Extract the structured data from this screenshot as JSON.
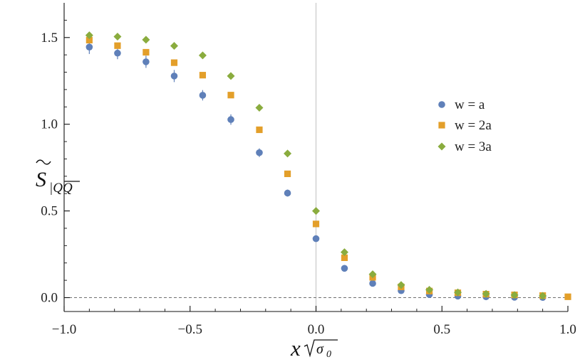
{
  "chart_data": {
    "type": "scatter",
    "title": "",
    "xlabel": {
      "main": "x",
      "root": "σ",
      "subscript": "0"
    },
    "ylabel": {
      "main": "S",
      "subscript": "|QQ"
    },
    "xlim": [
      -1.0,
      1.0
    ],
    "ylim": [
      -0.08,
      1.7
    ],
    "x_ticks": [
      -1.0,
      -0.5,
      0.0,
      0.5,
      1.0
    ],
    "x_tick_labels": [
      "−1.0",
      "−0.5",
      "0.0",
      "0.5",
      "1.0"
    ],
    "y_ticks": [
      0.0,
      0.5,
      1.0,
      1.5
    ],
    "y_tick_labels": [
      "0.0",
      "0.5",
      "1.0",
      "1.5"
    ],
    "grid": false,
    "reference_lines": {
      "horizontal_dashed_at_y": 0.0,
      "vertical_at_x": 0.0
    },
    "legend_position": "right",
    "series": [
      {
        "name": "w = a",
        "marker": "circle",
        "color": "#5f80b9",
        "points": [
          {
            "x": -0.9,
            "y": 1.445,
            "err": 0.04
          },
          {
            "x": -0.788,
            "y": 1.41,
            "err": 0.035
          },
          {
            "x": -0.675,
            "y": 1.36,
            "err": 0.035
          },
          {
            "x": -0.563,
            "y": 1.278,
            "err": 0.035
          },
          {
            "x": -0.45,
            "y": 1.167,
            "err": 0.03
          },
          {
            "x": -0.338,
            "y": 1.027,
            "err": 0.03
          },
          {
            "x": -0.225,
            "y": 0.836,
            "err": 0.025
          },
          {
            "x": -0.113,
            "y": 0.603,
            "err": 0.02
          },
          {
            "x": 0.0,
            "y": 0.34,
            "err": 0.01
          },
          {
            "x": 0.113,
            "y": 0.169,
            "err": 0.01
          },
          {
            "x": 0.225,
            "y": 0.082,
            "err": 0.005
          },
          {
            "x": 0.338,
            "y": 0.04,
            "err": 0.005
          },
          {
            "x": 0.45,
            "y": 0.018,
            "err": 0.003
          },
          {
            "x": 0.563,
            "y": 0.009,
            "err": 0.002
          },
          {
            "x": 0.675,
            "y": 0.005,
            "err": 0.002
          },
          {
            "x": 0.788,
            "y": 0.002,
            "err": 0.001
          },
          {
            "x": 0.9,
            "y": 0.001,
            "err": 0.001
          }
        ]
      },
      {
        "name": "w = 2a",
        "marker": "square",
        "color": "#e39f2a",
        "points": [
          {
            "x": -0.9,
            "y": 1.485,
            "err": 0.01
          },
          {
            "x": -0.788,
            "y": 1.453,
            "err": 0.01
          },
          {
            "x": -0.675,
            "y": 1.415,
            "err": 0.01
          },
          {
            "x": -0.563,
            "y": 1.355,
            "err": 0.01
          },
          {
            "x": -0.45,
            "y": 1.283,
            "err": 0.01
          },
          {
            "x": -0.338,
            "y": 1.168,
            "err": 0.01
          },
          {
            "x": -0.225,
            "y": 0.968,
            "err": 0.01
          },
          {
            "x": -0.113,
            "y": 0.714,
            "err": 0.01
          },
          {
            "x": 0.0,
            "y": 0.425,
            "err": 0.01
          },
          {
            "x": 0.113,
            "y": 0.23,
            "err": 0.005
          },
          {
            "x": 0.225,
            "y": 0.117,
            "err": 0.005
          },
          {
            "x": 0.338,
            "y": 0.062,
            "err": 0.003
          },
          {
            "x": 0.45,
            "y": 0.038,
            "err": 0.003
          },
          {
            "x": 0.563,
            "y": 0.028,
            "err": 0.002
          },
          {
            "x": 0.675,
            "y": 0.02,
            "err": 0.002
          },
          {
            "x": 0.788,
            "y": 0.016,
            "err": 0.002
          },
          {
            "x": 0.9,
            "y": 0.012,
            "err": 0.002
          },
          {
            "x": 1.0,
            "y": 0.005,
            "err": 0.002
          }
        ]
      },
      {
        "name": "w = 3a",
        "marker": "diamond",
        "color": "#8aac3e",
        "points": [
          {
            "x": -0.9,
            "y": 1.513,
            "err": 0.005
          },
          {
            "x": -0.788,
            "y": 1.505,
            "err": 0.005
          },
          {
            "x": -0.675,
            "y": 1.487,
            "err": 0.005
          },
          {
            "x": -0.563,
            "y": 1.452,
            "err": 0.005
          },
          {
            "x": -0.45,
            "y": 1.397,
            "err": 0.005
          },
          {
            "x": -0.338,
            "y": 1.278,
            "err": 0.005
          },
          {
            "x": -0.225,
            "y": 1.095,
            "err": 0.005
          },
          {
            "x": -0.113,
            "y": 0.831,
            "err": 0.005
          },
          {
            "x": 0.0,
            "y": 0.5,
            "err": 0.005
          },
          {
            "x": 0.113,
            "y": 0.262,
            "err": 0.005
          },
          {
            "x": 0.225,
            "y": 0.135,
            "err": 0.003
          },
          {
            "x": 0.338,
            "y": 0.073,
            "err": 0.003
          },
          {
            "x": 0.45,
            "y": 0.045,
            "err": 0.002
          },
          {
            "x": 0.563,
            "y": 0.03,
            "err": 0.002
          },
          {
            "x": 0.675,
            "y": 0.022,
            "err": 0.002
          },
          {
            "x": 0.788,
            "y": 0.015,
            "err": 0.002
          },
          {
            "x": 0.9,
            "y": 0.01,
            "err": 0.002
          }
        ]
      }
    ]
  }
}
